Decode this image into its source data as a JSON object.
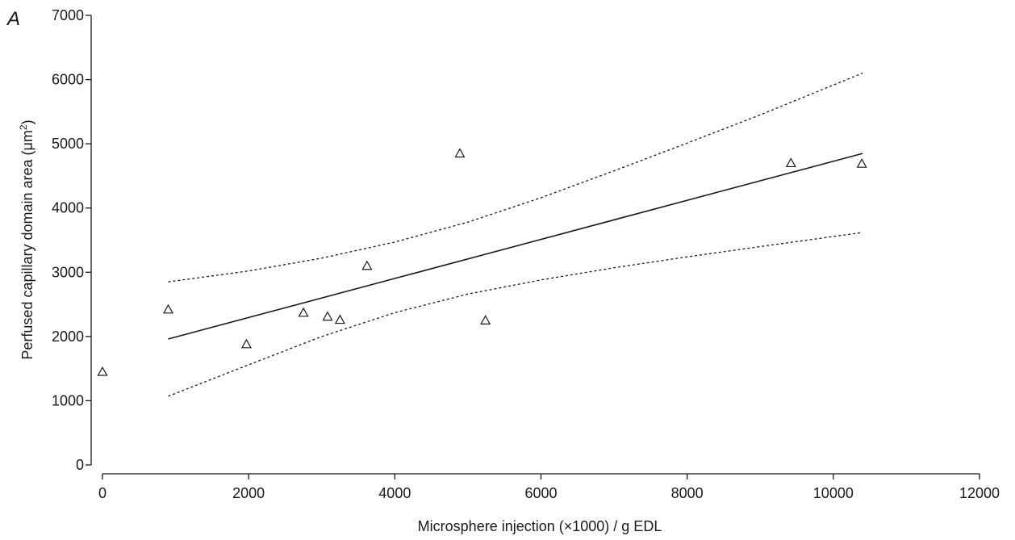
{
  "chart_data": {
    "type": "scatter",
    "panel_label": "A",
    "xlabel": "Microsphere injection (×1000) / g EDL",
    "ylabel_main": "Perfused capillary domain area (μm",
    "ylabel_sup": "2",
    "ylabel_close": ")",
    "xlim": [
      0,
      12000
    ],
    "ylim": [
      0,
      7000
    ],
    "x_ticks": [
      0,
      2000,
      4000,
      6000,
      8000,
      10000,
      12000
    ],
    "y_ticks": [
      0,
      1000,
      2000,
      3000,
      4000,
      5000,
      6000,
      7000
    ],
    "grid": false,
    "series": [
      {
        "marker": "open-triangle",
        "points": [
          {
            "x": 0,
            "y": 1450
          },
          {
            "x": 900,
            "y": 2420
          },
          {
            "x": 1970,
            "y": 1880
          },
          {
            "x": 2750,
            "y": 2370
          },
          {
            "x": 3080,
            "y": 2310
          },
          {
            "x": 3250,
            "y": 2260
          },
          {
            "x": 3620,
            "y": 3100
          },
          {
            "x": 4890,
            "y": 4850
          },
          {
            "x": 5240,
            "y": 2250
          },
          {
            "x": 9420,
            "y": 4700
          },
          {
            "x": 10390,
            "y": 4690
          }
        ]
      }
    ],
    "regression_line": {
      "style": "solid",
      "points": [
        {
          "x": 900,
          "y": 1960
        },
        {
          "x": 10400,
          "y": 4850
        }
      ]
    },
    "confidence_upper": {
      "style": "dotted",
      "points": [
        {
          "x": 900,
          "y": 2850
        },
        {
          "x": 2000,
          "y": 3020
        },
        {
          "x": 3000,
          "y": 3220
        },
        {
          "x": 4000,
          "y": 3470
        },
        {
          "x": 5000,
          "y": 3780
        },
        {
          "x": 6000,
          "y": 4160
        },
        {
          "x": 7000,
          "y": 4580
        },
        {
          "x": 8000,
          "y": 5010
        },
        {
          "x": 9000,
          "y": 5450
        },
        {
          "x": 10400,
          "y": 6100
        }
      ]
    },
    "confidence_lower": {
      "style": "dotted",
      "points": [
        {
          "x": 900,
          "y": 1070
        },
        {
          "x": 2000,
          "y": 1560
        },
        {
          "x": 3000,
          "y": 2000
        },
        {
          "x": 4000,
          "y": 2370
        },
        {
          "x": 5000,
          "y": 2660
        },
        {
          "x": 6000,
          "y": 2880
        },
        {
          "x": 7000,
          "y": 3070
        },
        {
          "x": 8000,
          "y": 3240
        },
        {
          "x": 9000,
          "y": 3400
        },
        {
          "x": 10400,
          "y": 3620
        }
      ]
    }
  }
}
